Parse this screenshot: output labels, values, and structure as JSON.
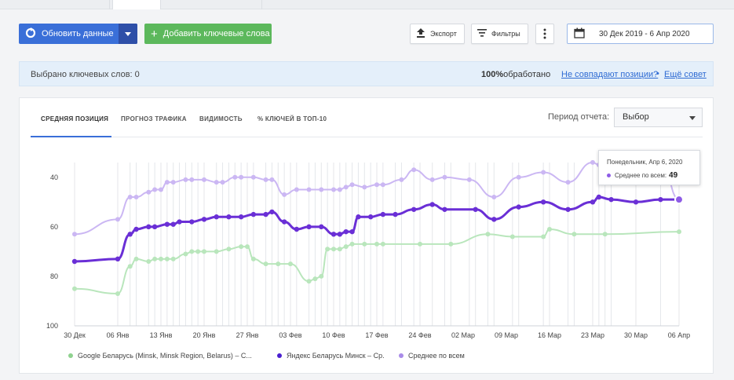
{
  "toolbar": {
    "update_label": "Обновить данные",
    "add_label": "Добавить ключевые слова",
    "export_label": "Экспорт",
    "filters_label": "Фильтры",
    "date_range": "30 Дек 2019 - 6 Апр 2020"
  },
  "info": {
    "selected": "Выбрано ключевых слов: 0",
    "processed_pct": "100%",
    "processed_text": "обработано",
    "mismatch_link": "Не совпадают позиции?",
    "separator": "•",
    "more_tip_link": "Ещё совет"
  },
  "tabs": [
    {
      "label": "СРЕДНЯЯ ПОЗИЦИЯ",
      "active": true
    },
    {
      "label": "ПРОГНОЗ ТРАФИКА",
      "active": false
    },
    {
      "label": "ВИДИМОСТЬ",
      "active": false
    },
    {
      "label": "% КЛЮЧЕЙ В ТОП-10",
      "active": false
    }
  ],
  "period": {
    "label": "Период отчета:",
    "value": "Выбор"
  },
  "tooltip": {
    "date": "Понедельник, Апр 6, 2020",
    "series": "Среднее по всем:",
    "value": "49"
  },
  "colors": {
    "google": "#8fd28f",
    "yandex": "#6a2fd6",
    "avg": "#a98be8",
    "accent": "#3a6fd8"
  },
  "chart_data": {
    "type": "line",
    "y_inverted": true,
    "ylim": [
      100,
      30
    ],
    "yticks": [
      "40",
      "60",
      "80",
      "100"
    ],
    "xticks": [
      "30 Дек",
      "06 Янв",
      "13 Янв",
      "20 Янв",
      "27 Янв",
      "03 Фев",
      "10 Фев",
      "17 Фев",
      "24 Фев",
      "02 Мар",
      "09 Мар",
      "16 Мар",
      "23 Мар",
      "30 Мар",
      "06 Апр"
    ],
    "x_days_end": 98,
    "series": [
      {
        "name": "Google Беларусь (Minsk, Minsk Region, Belarus) – С...",
        "color": "#b9e6bc",
        "points": [
          [
            0,
            85
          ],
          [
            7,
            87
          ],
          [
            9,
            76
          ],
          [
            10,
            73
          ],
          [
            12,
            74
          ],
          [
            13,
            73
          ],
          [
            14,
            73
          ],
          [
            15,
            73
          ],
          [
            16,
            73
          ],
          [
            18,
            71
          ],
          [
            19,
            70
          ],
          [
            20,
            70
          ],
          [
            21,
            70
          ],
          [
            23,
            70
          ],
          [
            25,
            69
          ],
          [
            27,
            68
          ],
          [
            28,
            68
          ],
          [
            29,
            73
          ],
          [
            31,
            75
          ],
          [
            33,
            75
          ],
          [
            35,
            75
          ],
          [
            38,
            82
          ],
          [
            39,
            81
          ],
          [
            40,
            80
          ],
          [
            41,
            69
          ],
          [
            42,
            69
          ],
          [
            43,
            69
          ],
          [
            44,
            68
          ],
          [
            45,
            67
          ],
          [
            47,
            67
          ],
          [
            49,
            67
          ],
          [
            50,
            67
          ],
          [
            56,
            67
          ],
          [
            61,
            67
          ],
          [
            67,
            63
          ],
          [
            71,
            64
          ],
          [
            76,
            64
          ],
          [
            77,
            61
          ],
          [
            81,
            63
          ],
          [
            86,
            63
          ],
          [
            98,
            62
          ]
        ]
      },
      {
        "name": "Яндекс Беларусь Минск – Ср.",
        "color": "#6a2fd6",
        "points": [
          [
            0,
            74
          ],
          [
            7,
            73
          ],
          [
            9,
            63
          ],
          [
            10,
            61
          ],
          [
            12,
            60
          ],
          [
            13,
            60
          ],
          [
            15,
            59
          ],
          [
            16,
            59
          ],
          [
            17,
            58
          ],
          [
            19,
            58
          ],
          [
            21,
            57
          ],
          [
            23,
            56
          ],
          [
            25,
            56
          ],
          [
            27,
            56
          ],
          [
            29,
            55
          ],
          [
            31,
            55
          ],
          [
            32,
            54
          ],
          [
            34,
            58
          ],
          [
            36,
            61
          ],
          [
            38,
            60
          ],
          [
            40,
            60
          ],
          [
            42,
            63
          ],
          [
            43,
            63
          ],
          [
            44,
            62
          ],
          [
            45,
            62
          ],
          [
            46,
            56
          ],
          [
            48,
            56
          ],
          [
            50,
            55
          ],
          [
            52,
            55
          ],
          [
            55,
            53
          ],
          [
            58,
            51
          ],
          [
            60,
            53
          ],
          [
            65,
            53
          ],
          [
            68,
            57
          ],
          [
            72,
            52
          ],
          [
            76,
            50
          ],
          [
            80,
            53
          ],
          [
            84,
            50
          ],
          [
            85,
            48
          ],
          [
            87,
            49
          ],
          [
            91,
            50
          ],
          [
            95,
            49
          ],
          [
            98,
            49
          ]
        ]
      },
      {
        "name": "Среднее по всем",
        "color": "#cbb7f3",
        "points": [
          [
            0,
            63
          ],
          [
            7,
            57
          ],
          [
            9,
            48
          ],
          [
            10,
            48
          ],
          [
            12,
            46
          ],
          [
            13,
            45
          ],
          [
            14,
            45
          ],
          [
            15,
            42
          ],
          [
            16,
            42
          ],
          [
            18,
            41
          ],
          [
            19,
            41
          ],
          [
            21,
            41
          ],
          [
            23,
            42
          ],
          [
            24,
            42
          ],
          [
            26,
            40
          ],
          [
            27,
            40
          ],
          [
            29,
            40
          ],
          [
            31,
            41
          ],
          [
            32,
            41
          ],
          [
            34,
            47
          ],
          [
            36,
            45
          ],
          [
            38,
            45
          ],
          [
            40,
            45
          ],
          [
            42,
            45
          ],
          [
            43,
            45
          ],
          [
            44,
            44
          ],
          [
            45,
            43
          ],
          [
            47,
            44
          ],
          [
            49,
            43
          ],
          [
            50,
            43
          ],
          [
            53,
            41
          ],
          [
            55,
            37
          ],
          [
            58,
            41
          ],
          [
            60,
            40
          ],
          [
            64,
            41
          ],
          [
            68,
            48
          ],
          [
            72,
            40
          ],
          [
            76,
            38
          ],
          [
            80,
            42
          ],
          [
            84,
            34
          ],
          [
            85,
            35
          ],
          [
            87,
            34
          ],
          [
            91,
            33
          ],
          [
            95,
            33
          ],
          [
            98,
            49
          ]
        ]
      }
    ],
    "legend": [
      "Google Беларусь (Minsk, Minsk Region, Belarus) – С...",
      "Яндекс Беларусь Минск – Ср.",
      "Среднее по всем"
    ]
  }
}
